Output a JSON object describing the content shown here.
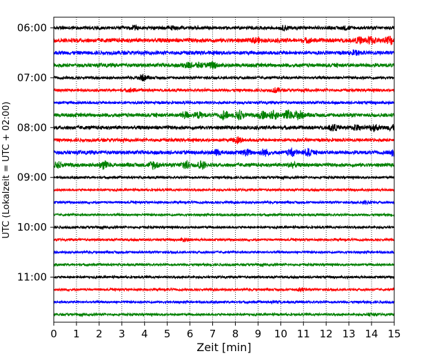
{
  "chart_data": {
    "type": "line",
    "title": "",
    "xlabel": "Zeit  [min]",
    "ylabel": "UTC (Lokalzeit = UTC + 02:00)",
    "xlim": [
      0,
      15
    ],
    "x_ticks": [
      0,
      1,
      2,
      3,
      4,
      5,
      6,
      7,
      8,
      9,
      10,
      11,
      12,
      13,
      14,
      15
    ],
    "x_grid": true,
    "y_ticks": [
      "06:00",
      "07:00",
      "08:00",
      "09:00",
      "10:00",
      "11:00"
    ],
    "trace_interval_min": 15,
    "trace_colors": [
      "#000000",
      "#ff0000",
      "#0000ff",
      "#008000"
    ],
    "traces": [
      {
        "start": "06:00",
        "color": "#000000",
        "amplitude": 0.35,
        "bursts": [
          [
            3.6,
            0.3
          ],
          [
            5.2,
            0.25
          ],
          [
            10.2,
            0.35
          ],
          [
            12.9,
            0.3
          ]
        ]
      },
      {
        "start": "06:15",
        "color": "#ff0000",
        "amplitude": 0.45,
        "bursts": [
          [
            8.9,
            0.4
          ],
          [
            11.2,
            0.3
          ],
          [
            13.5,
            0.5
          ],
          [
            14.0,
            0.7
          ],
          [
            14.8,
            0.8
          ]
        ]
      },
      {
        "start": "06:30",
        "color": "#0000ff",
        "amplitude": 0.4,
        "bursts": [
          [
            13.3,
            0.35
          ]
        ]
      },
      {
        "start": "06:45",
        "color": "#008000",
        "amplitude": 0.4,
        "bursts": [
          [
            5.9,
            0.45
          ],
          [
            6.4,
            0.4
          ],
          [
            7.0,
            0.55
          ]
        ]
      },
      {
        "start": "07:00",
        "color": "#000000",
        "amplitude": 0.3,
        "bursts": [
          [
            3.9,
            0.6
          ]
        ]
      },
      {
        "start": "07:15",
        "color": "#ff0000",
        "amplitude": 0.3,
        "bursts": [
          [
            3.4,
            0.3
          ],
          [
            9.8,
            0.45
          ]
        ]
      },
      {
        "start": "07:30",
        "color": "#0000ff",
        "amplitude": 0.3,
        "bursts": []
      },
      {
        "start": "07:45",
        "color": "#008000",
        "amplitude": 0.4,
        "bursts": [
          [
            5.8,
            0.6
          ],
          [
            6.4,
            0.5
          ],
          [
            7.5,
            0.8
          ],
          [
            8.2,
            0.9
          ],
          [
            9.2,
            0.7
          ],
          [
            9.7,
            0.8
          ],
          [
            10.3,
            0.9
          ],
          [
            10.8,
            0.9
          ]
        ]
      },
      {
        "start": "08:00",
        "color": "#000000",
        "amplitude": 0.4,
        "bursts": [
          [
            12.3,
            0.55
          ],
          [
            13.3,
            0.45
          ],
          [
            14.1,
            0.65
          ],
          [
            14.9,
            0.45
          ]
        ]
      },
      {
        "start": "08:15",
        "color": "#ff0000",
        "amplitude": 0.35,
        "bursts": [
          [
            8.1,
            0.65
          ]
        ]
      },
      {
        "start": "08:30",
        "color": "#0000ff",
        "amplitude": 0.4,
        "bursts": [
          [
            7.2,
            0.45
          ],
          [
            8.5,
            0.55
          ],
          [
            9.3,
            0.6
          ],
          [
            10.5,
            0.7
          ],
          [
            11.2,
            0.65
          ],
          [
            15.0,
            0.6
          ]
        ]
      },
      {
        "start": "08:45",
        "color": "#008000",
        "amplitude": 0.4,
        "bursts": [
          [
            0.2,
            0.5
          ],
          [
            2.2,
            0.8
          ],
          [
            4.4,
            0.8
          ],
          [
            5.8,
            0.8
          ],
          [
            6.5,
            0.75
          ],
          [
            10.5,
            0.45
          ]
        ]
      },
      {
        "start": "09:00",
        "color": "#000000",
        "amplitude": 0.25,
        "bursts": []
      },
      {
        "start": "09:15",
        "color": "#ff0000",
        "amplitude": 0.25,
        "bursts": []
      },
      {
        "start": "09:30",
        "color": "#0000ff",
        "amplitude": 0.25,
        "bursts": [
          [
            13.8,
            0.3
          ]
        ]
      },
      {
        "start": "09:45",
        "color": "#008000",
        "amplitude": 0.25,
        "bursts": []
      },
      {
        "start": "10:00",
        "color": "#000000",
        "amplitude": 0.25,
        "bursts": []
      },
      {
        "start": "10:15",
        "color": "#ff0000",
        "amplitude": 0.25,
        "bursts": [
          [
            5.8,
            0.3
          ]
        ]
      },
      {
        "start": "10:30",
        "color": "#0000ff",
        "amplitude": 0.25,
        "bursts": []
      },
      {
        "start": "10:45",
        "color": "#008000",
        "amplitude": 0.25,
        "bursts": []
      },
      {
        "start": "11:00",
        "color": "#000000",
        "amplitude": 0.25,
        "bursts": []
      },
      {
        "start": "11:15",
        "color": "#ff0000",
        "amplitude": 0.25,
        "bursts": [
          [
            10.9,
            0.3
          ]
        ]
      },
      {
        "start": "11:30",
        "color": "#0000ff",
        "amplitude": 0.25,
        "bursts": [
          [
            9.8,
            0.2
          ]
        ]
      },
      {
        "start": "11:45",
        "color": "#008000",
        "amplitude": 0.25,
        "bursts": [
          [
            14.0,
            0.25
          ]
        ]
      }
    ]
  }
}
